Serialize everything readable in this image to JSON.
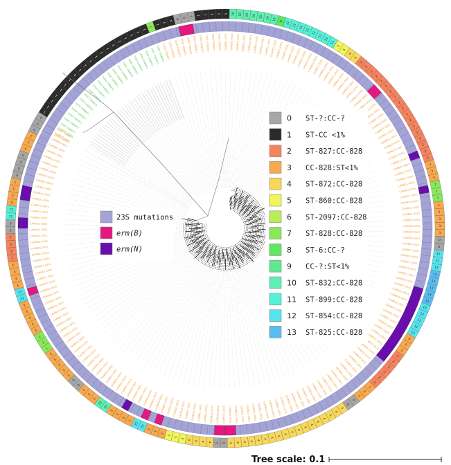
{
  "figure": {
    "scale_label": "Tree scale: 0.1",
    "leaf_label": "CAMB01-0001",
    "leaf_count": 196
  },
  "resistance_legend": [
    {
      "label": "23S mutations",
      "color": "#a3a3d6"
    },
    {
      "label": "erm(B)",
      "color": "#e6177f"
    },
    {
      "label": "erm(N)",
      "color": "#6a0dad"
    }
  ],
  "st_legend": [
    {
      "code": "0",
      "label": "ST-?:CC-?",
      "color": "#a6a6a6"
    },
    {
      "code": "1",
      "label": "ST-CC <1%",
      "color": "#2b2b2b"
    },
    {
      "code": "2",
      "label": "ST-827:CC-828",
      "color": "#f4845f"
    },
    {
      "code": "3",
      "label": "CC-828:ST<1%",
      "color": "#f7a94e"
    },
    {
      "code": "4",
      "label": "ST-872:CC-828",
      "color": "#f7d85a"
    },
    {
      "code": "5",
      "label": "ST-860:CC-828",
      "color": "#f2f55a"
    },
    {
      "code": "6",
      "label": "ST-2097:CC-828",
      "color": "#b7ee55"
    },
    {
      "code": "7",
      "label": "ST-828:CC-828",
      "color": "#88e85a"
    },
    {
      "code": "8",
      "label": "ST-6:CC-?",
      "color": "#5de85d"
    },
    {
      "code": "9",
      "label": "CC-?:ST<1%",
      "color": "#5ee88f"
    },
    {
      "code": "10",
      "label": "ST-832:CC-828",
      "color": "#5ef0b2"
    },
    {
      "code": "11",
      "label": "ST-899:CC-828",
      "color": "#56f0d6"
    },
    {
      "code": "12",
      "label": "ST-854:CC-828",
      "color": "#57e3ef"
    },
    {
      "code": "13",
      "label": "ST-825:CC-828",
      "color": "#5abdf2"
    }
  ],
  "ring_segments": [
    {
      "start_deg": -58,
      "end_deg": -22,
      "code": "1"
    },
    {
      "start_deg": -22,
      "end_deg": -20,
      "code": "7"
    },
    {
      "start_deg": -20,
      "end_deg": -14,
      "code": "1"
    },
    {
      "start_deg": -14,
      "end_deg": -8,
      "code": "0"
    },
    {
      "start_deg": -8,
      "end_deg": 2,
      "code": "1"
    },
    {
      "start_deg": 2,
      "end_deg": 14,
      "code": "10"
    },
    {
      "start_deg": 14,
      "end_deg": 16,
      "code": "8"
    },
    {
      "start_deg": 16,
      "end_deg": 30,
      "code": "11"
    },
    {
      "start_deg": 30,
      "end_deg": 34,
      "code": "5"
    },
    {
      "start_deg": 34,
      "end_deg": 38,
      "code": "4"
    },
    {
      "start_deg": 38,
      "end_deg": 72,
      "code": "2"
    },
    {
      "start_deg": 72,
      "end_deg": 78,
      "code": "3"
    },
    {
      "start_deg": 78,
      "end_deg": 82,
      "code": "7"
    },
    {
      "start_deg": 82,
      "end_deg": 92,
      "code": "3"
    },
    {
      "start_deg": 92,
      "end_deg": 96,
      "code": "0"
    },
    {
      "start_deg": 96,
      "end_deg": 101,
      "code": "12"
    },
    {
      "start_deg": 101,
      "end_deg": 110,
      "code": "13"
    },
    {
      "start_deg": 110,
      "end_deg": 120,
      "code": "12"
    },
    {
      "start_deg": 120,
      "end_deg": 126,
      "code": "3"
    },
    {
      "start_deg": 126,
      "end_deg": 136,
      "code": "2"
    },
    {
      "start_deg": 136,
      "end_deg": 142,
      "code": "3"
    },
    {
      "start_deg": 142,
      "end_deg": 146,
      "code": "0"
    },
    {
      "start_deg": 146,
      "end_deg": 180,
      "code": "4"
    },
    {
      "start_deg": 180,
      "end_deg": 184,
      "code": "0"
    },
    {
      "start_deg": 184,
      "end_deg": 190,
      "code": "4"
    },
    {
      "start_deg": 190,
      "end_deg": 196,
      "code": "5"
    },
    {
      "start_deg": 196,
      "end_deg": 202,
      "code": "3"
    },
    {
      "start_deg": 202,
      "end_deg": 206,
      "code": "12"
    },
    {
      "start_deg": 206,
      "end_deg": 212,
      "code": "3"
    },
    {
      "start_deg": 212,
      "end_deg": 216,
      "code": "10"
    },
    {
      "start_deg": 216,
      "end_deg": 222,
      "code": "3"
    },
    {
      "start_deg": 222,
      "end_deg": 226,
      "code": "0"
    },
    {
      "start_deg": 226,
      "end_deg": 236,
      "code": "3"
    },
    {
      "start_deg": 236,
      "end_deg": 240,
      "code": "7"
    },
    {
      "start_deg": 240,
      "end_deg": 250,
      "code": "3"
    },
    {
      "start_deg": 250,
      "end_deg": 254,
      "code": "12"
    },
    {
      "start_deg": 254,
      "end_deg": 262,
      "code": "3"
    },
    {
      "start_deg": 262,
      "end_deg": 268,
      "code": "2"
    },
    {
      "start_deg": 268,
      "end_deg": 272,
      "code": "0"
    },
    {
      "start_deg": 272,
      "end_deg": 276,
      "code": "11"
    },
    {
      "start_deg": 276,
      "end_deg": 284,
      "code": "3"
    },
    {
      "start_deg": 284,
      "end_deg": 290,
      "code": "0"
    },
    {
      "start_deg": 290,
      "end_deg": 296,
      "code": "3"
    },
    {
      "start_deg": 296,
      "end_deg": 302,
      "code": "0"
    }
  ],
  "erm_segments": [
    {
      "start_deg": -13,
      "end_deg": -9,
      "type": "erm(B)"
    },
    {
      "start_deg": 46,
      "end_deg": 49,
      "type": "erm(B)"
    },
    {
      "start_deg": 68,
      "end_deg": 70,
      "type": "erm(N)"
    },
    {
      "start_deg": 78,
      "end_deg": 80,
      "type": "erm(N)"
    },
    {
      "start_deg": 107,
      "end_deg": 130,
      "type": "erm(N)"
    },
    {
      "start_deg": 177,
      "end_deg": 180,
      "type": "erm(B)"
    },
    {
      "start_deg": 180,
      "end_deg": 183,
      "type": "erm(B)"
    },
    {
      "start_deg": 198,
      "end_deg": 200,
      "type": "erm(B)"
    },
    {
      "start_deg": 202,
      "end_deg": 204,
      "type": "erm(B)"
    },
    {
      "start_deg": 208,
      "end_deg": 210,
      "type": "erm(N)"
    },
    {
      "start_deg": 251,
      "end_deg": 253,
      "type": "erm(B)"
    },
    {
      "start_deg": 270,
      "end_deg": 273,
      "type": "erm(N)"
    },
    {
      "start_deg": 278,
      "end_deg": 282,
      "type": "erm(N)"
    }
  ]
}
